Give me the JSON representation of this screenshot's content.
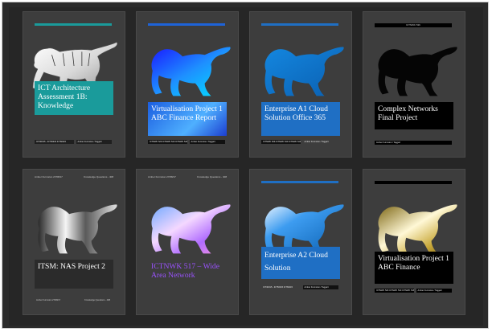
{
  "covers": [
    {
      "title": "ICT Architecture Assessment 1B: Knowledge",
      "accent": "#1a9b9b",
      "footer_left": "ICT40315 - ICT50315 ICT60115",
      "footer_right": "Amber Furmston / Taggart",
      "icon": "tiger-icon-white"
    },
    {
      "title": "Virtualisation Project 1 ABC Finance Report",
      "accent": "#1e63d8",
      "footer_left": "ICTNWK 529 ICTNWK 540 ICTNWK 546",
      "footer_right": "Amber Furmston / Taggart",
      "icon": "tiger-icon-blue"
    },
    {
      "title": "Enterprise A1 Cloud Solution Office 365",
      "accent": "#1f6fc4",
      "footer_left": "ICTNWK 529 ICTNWK 540 ICTNWK 546",
      "footer_right": "Amber Furmston / Taggart",
      "icon": "tiger-icon-blue"
    },
    {
      "title": "Complex Networks Final Project",
      "accent": "#000000",
      "header_center": "ICTNWK 536",
      "footer_left": "Amber Furmston / Taggart",
      "footer_right": "",
      "icon": "tiger-icon-black"
    },
    {
      "title": "ITSM: NAS Project 2",
      "accent": "#2b2b2b",
      "header_left": "Amber Furmston 27/08/17",
      "header_right": "Knowledge Questions - 408",
      "footer_left": "Amber Furmston 27/08/17",
      "footer_right": "Knowledge Questions - 408",
      "icon": "tiger-icon-silver"
    },
    {
      "title": "ICTNWK 517 – Wide Area Network",
      "accent": "#3d3d3d",
      "header_left": "Amber Furmston 27/08/17",
      "header_right": "Knowledge Questions - 408",
      "footer_left": "",
      "footer_right": "",
      "icon": "tiger-icon-iridescent"
    },
    {
      "title": "Enterprise A2 Cloud Solution",
      "accent": "#1f6fc4",
      "footer_left": "ICT40315 - ICT50315 ICT60115",
      "footer_right": "Amber Furmston / Taggart",
      "icon": "tiger-icon-blue"
    },
    {
      "title": "Virtualisation Project 1 ABC Finance",
      "accent": "#000000",
      "footer_left": "ICTNWK 529 ICTNWK 540 ICTNWK 546",
      "footer_right": "Amber Furmston / Taggart",
      "icon": "tiger-icon-gold"
    }
  ]
}
